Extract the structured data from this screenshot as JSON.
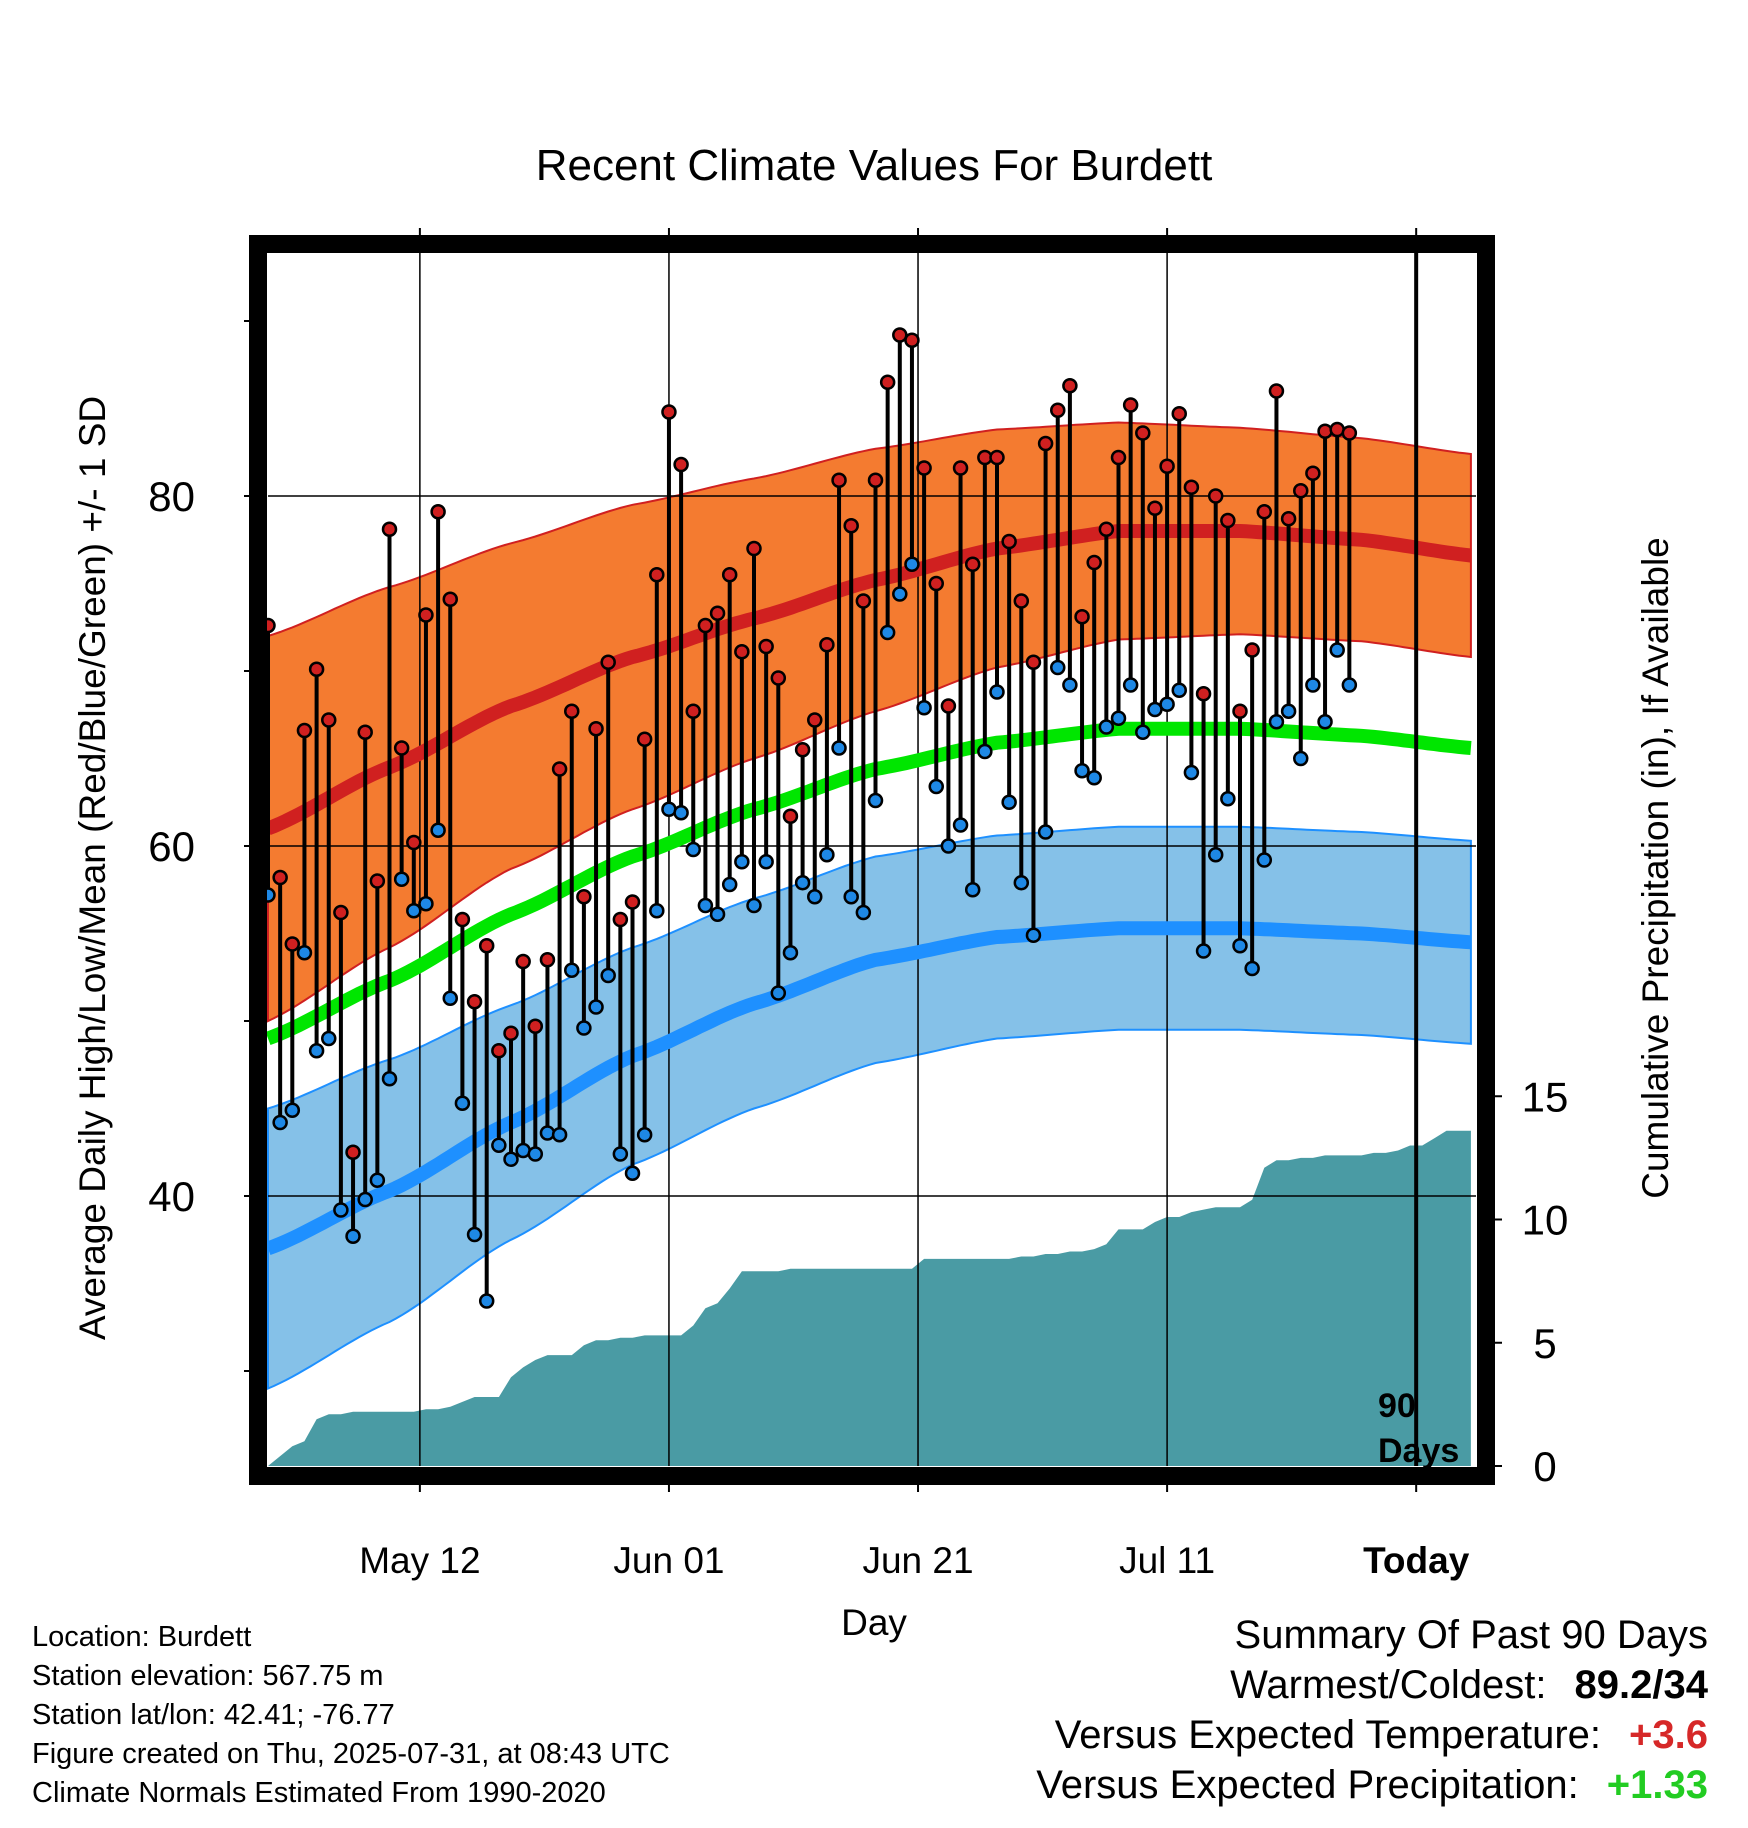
{
  "chart_data": {
    "type": "line",
    "title": "Recent Climate Values For Burdett",
    "xlabel": "Day",
    "ylabel": "Average Daily High/Low/Mean (Red/Blue/Green) +/- 1 SD",
    "y2label": "Cumulative Precipitation (in), If Available",
    "x_tick_labels": [
      "May 12",
      "Jun 01",
      "Jun 21",
      "Jul 11",
      "Today"
    ],
    "y_ticks": [
      40,
      60,
      80
    ],
    "y2_ticks": [
      0,
      5,
      10,
      15
    ],
    "ylim": [
      24.5,
      95
    ],
    "y2lim": [
      0,
      25.5
    ],
    "marker_label": "90 Days",
    "grid": true,
    "colors": {
      "high_band": "#f47b30",
      "high_line": "#d02020",
      "low_band": "#85c1e8",
      "low_line": "#1e90ff",
      "mean_line": "#00e600",
      "precip": "#4a9ba4",
      "high_dot": "#d02020",
      "low_dot": "#1e88e5"
    },
    "normals": {
      "x": [
        0,
        10,
        20,
        30,
        40,
        50,
        60,
        70,
        80,
        90,
        99
      ],
      "high_mean": [
        61,
        64.5,
        68,
        70.8,
        73,
        75.2,
        77,
        78,
        78,
        77.5,
        76.6
      ],
      "high_sd": [
        11,
        10.3,
        9.3,
        8.7,
        8,
        7.5,
        6.8,
        6.2,
        5.9,
        5.8,
        5.8
      ],
      "low_mean": [
        37,
        40.3,
        44.2,
        48,
        51,
        53.5,
        54.8,
        55.3,
        55.3,
        55,
        54.5
      ],
      "low_sd": [
        8,
        7.5,
        6.7,
        6.2,
        6,
        5.9,
        5.8,
        5.8,
        5.8,
        5.8,
        5.8
      ],
      "mean": [
        49,
        52.3,
        56.1,
        59.4,
        62.1,
        64.4,
        65.9,
        66.7,
        66.7,
        66.3,
        65.6
      ]
    },
    "daily": {
      "day": [
        0,
        1,
        2,
        3,
        4,
        5,
        6,
        7,
        8,
        9,
        10,
        11,
        12,
        13,
        14,
        15,
        16,
        17,
        18,
        19,
        20,
        21,
        22,
        23,
        24,
        25,
        26,
        27,
        28,
        29,
        30,
        31,
        32,
        33,
        34,
        35,
        36,
        37,
        38,
        39,
        40,
        41,
        42,
        43,
        44,
        45,
        46,
        47,
        48,
        49,
        50,
        51,
        52,
        53,
        54,
        55,
        56,
        57,
        58,
        59,
        60,
        61,
        62,
        63,
        64,
        65,
        66,
        67,
        68,
        69,
        70,
        71,
        72,
        73,
        74,
        75,
        76,
        77,
        78,
        79,
        80,
        81,
        82,
        83,
        84,
        85,
        86,
        87,
        88,
        89
      ],
      "high": [
        72.6,
        58.2,
        54.4,
        66.6,
        70.1,
        67.2,
        56.2,
        42.5,
        66.5,
        58.0,
        78.1,
        65.6,
        60.2,
        73.2,
        79.1,
        74.1,
        55.8,
        51.1,
        54.3,
        48.3,
        49.3,
        53.4,
        49.7,
        53.5,
        64.4,
        67.7,
        57.1,
        66.7,
        70.5,
        55.8,
        56.8,
        66.1,
        75.5,
        84.8,
        81.8,
        67.7,
        72.6,
        73.3,
        75.5,
        71.1,
        77.0,
        71.4,
        69.6,
        61.7,
        65.5,
        67.2,
        71.5,
        80.9,
        78.3,
        74.0,
        80.9,
        86.5,
        89.2,
        88.9,
        81.6,
        75.0,
        68.0,
        81.6,
        76.1,
        82.2,
        82.2,
        77.4,
        74.0,
        70.5,
        83.0,
        84.9,
        86.3,
        73.1,
        76.2,
        78.1,
        82.2,
        85.2,
        83.6,
        79.3,
        81.7,
        84.7,
        80.5,
        68.7,
        80.0,
        78.6,
        67.7,
        71.2,
        79.1,
        86.0,
        78.7,
        80.3,
        81.3,
        83.7,
        83.8,
        83.6
      ],
      "low": [
        57.2,
        44.2,
        44.9,
        53.9,
        48.3,
        49.0,
        39.2,
        37.7,
        39.8,
        40.9,
        46.7,
        58.1,
        56.3,
        56.7,
        60.9,
        51.3,
        45.3,
        37.8,
        34.0,
        42.9,
        42.1,
        42.6,
        42.4,
        43.6,
        43.5,
        52.9,
        49.6,
        50.8,
        52.6,
        42.4,
        41.3,
        43.5,
        56.3,
        62.1,
        61.9,
        59.8,
        56.6,
        56.1,
        57.8,
        59.1,
        56.6,
        59.1,
        51.6,
        53.9,
        57.9,
        57.1,
        59.5,
        65.6,
        57.1,
        56.2,
        62.6,
        72.2,
        74.4,
        76.1,
        67.9,
        63.4,
        60.0,
        61.2,
        57.5,
        65.4,
        68.8,
        62.5,
        57.9,
        54.9,
        60.8,
        70.2,
        69.2,
        64.3,
        63.9,
        66.8,
        67.3,
        69.2,
        66.5,
        67.8,
        68.1,
        68.9,
        64.2,
        54.0,
        59.5,
        62.7,
        54.3,
        53.0,
        59.2,
        67.1,
        67.7,
        65.0,
        69.2,
        67.1,
        71.2,
        69.2
      ]
    },
    "precipitation": {
      "day": [
        0,
        2,
        3,
        4,
        5,
        6,
        7,
        9,
        10,
        12,
        13,
        14,
        15,
        16,
        17,
        18,
        19,
        20,
        21,
        22,
        23,
        24,
        25,
        26,
        27,
        28,
        29,
        30,
        31,
        32,
        33,
        34,
        35,
        36,
        37,
        38,
        39,
        40,
        41,
        42,
        43,
        44,
        45,
        46,
        47,
        48,
        49,
        50,
        51,
        52,
        53,
        54,
        55,
        56,
        57,
        58,
        59,
        60,
        61,
        62,
        63,
        64,
        65,
        66,
        67,
        68,
        69,
        70,
        71,
        72,
        73,
        74,
        75,
        76,
        77,
        78,
        79,
        80,
        81,
        82,
        83,
        84,
        85,
        86,
        87,
        88,
        89,
        90,
        91,
        92,
        93,
        94,
        95,
        96,
        97,
        98,
        99
      ],
      "value": [
        0,
        0.8,
        1.0,
        1.9,
        2.1,
        2.1,
        2.2,
        2.2,
        2.2,
        2.2,
        2.3,
        2.3,
        2.4,
        2.6,
        2.8,
        2.8,
        2.8,
        3.6,
        4.0,
        4.3,
        4.5,
        4.5,
        4.5,
        4.9,
        5.1,
        5.1,
        5.2,
        5.2,
        5.3,
        5.3,
        5.3,
        5.3,
        5.7,
        6.4,
        6.6,
        7.2,
        7.9,
        7.9,
        7.9,
        7.9,
        8.0,
        8.0,
        8.0,
        8.0,
        8.0,
        8.0,
        8.0,
        8.0,
        8.0,
        8.0,
        8.0,
        8.4,
        8.4,
        8.4,
        8.4,
        8.4,
        8.4,
        8.4,
        8.4,
        8.5,
        8.5,
        8.6,
        8.6,
        8.7,
        8.7,
        8.8,
        9.0,
        9.6,
        9.6,
        9.6,
        9.9,
        10.1,
        10.1,
        10.3,
        10.4,
        10.5,
        10.5,
        10.5,
        10.8,
        12.1,
        12.4,
        12.4,
        12.5,
        12.5,
        12.6,
        12.6,
        12.6,
        12.6,
        12.7,
        12.7,
        12.8,
        13.0,
        13.0,
        13.3,
        13.6,
        13.6,
        13.6,
        13.6,
        13.6,
        13.6,
        13.6
      ]
    }
  },
  "metadata": {
    "location": "Location: Burdett",
    "elevation": "Station elevation: 567.75 m",
    "latlon": "Station lat/lon: 42.41; -76.77",
    "created": "Figure created on Thu, 2025-07-31, at 08:43 UTC",
    "normals": "Climate Normals Estimated From 1990-2020"
  },
  "summary": {
    "title": "Summary Of Past 90 Days",
    "warmest_coldest_label": "Warmest/Coldest:",
    "warmest_coldest_value": "89.2/34",
    "temp_label": "Versus Expected Temperature:",
    "temp_value": "+3.6",
    "temp_color": "#d62828",
    "precip_label": "Versus Expected Precipitation:",
    "precip_value": "+1.33",
    "precip_color": "#22cc22"
  }
}
